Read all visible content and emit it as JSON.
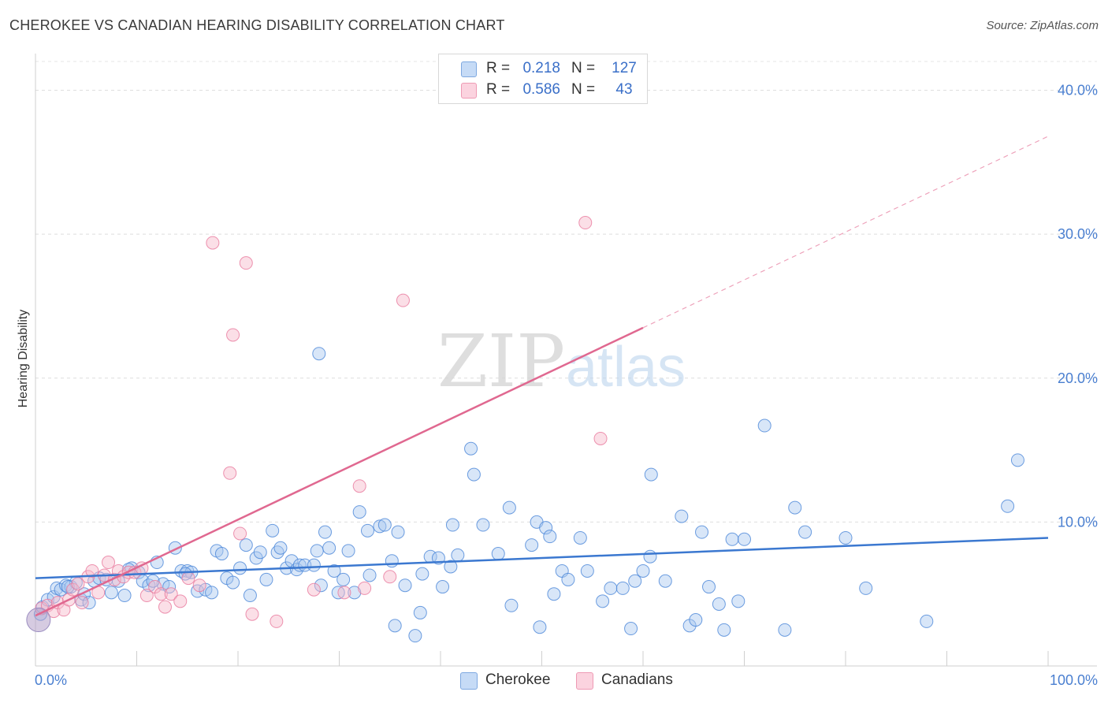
{
  "title": "CHEROKEE VS CANADIAN HEARING DISABILITY CORRELATION CHART",
  "source": "Source: ZipAtlas.com",
  "watermark": {
    "zip": "ZIP",
    "atlas": "atlas"
  },
  "legend": {
    "rows": [
      {
        "r_label": "R =",
        "r_value": "0.218",
        "n_label": "N =",
        "n_value": "127",
        "color": "#a8c8f0"
      },
      {
        "r_label": "R =",
        "r_value": "0.586",
        "n_label": "N =",
        "n_value": "43",
        "color": "#f6b8c9"
      }
    ]
  },
  "bottom_legend": [
    {
      "label": "Cherokee",
      "color": "#a8c8f0"
    },
    {
      "label": "Canadians",
      "color": "#f6b8c9"
    }
  ],
  "chart_data": {
    "type": "scatter",
    "title": "CHEROKEE VS CANADIAN HEARING DISABILITY CORRELATION CHART",
    "xlabel": "",
    "ylabel": "Hearing Disability",
    "xlim": [
      0,
      100
    ],
    "ylim": [
      0,
      42
    ],
    "x_tick_labels": [
      "0.0%",
      "100.0%"
    ],
    "y_ticks": [
      10,
      20,
      30,
      40
    ],
    "y_tick_labels": [
      "10.0%",
      "20.0%",
      "30.0%",
      "40.0%"
    ],
    "grid": true,
    "colors": {
      "cherokee": "#4a86d8",
      "canadians": "#e8789c",
      "cherokee_line": "#3b78d0",
      "canadians_line": "#e06890"
    },
    "series": [
      {
        "name": "Cherokee",
        "color": "#a8c8f0",
        "r": 0.218,
        "n": 127,
        "trend": {
          "x": [
            0,
            100
          ],
          "y": [
            6.1,
            8.9
          ]
        },
        "points": [
          [
            0.5,
            3.6
          ],
          [
            0.7,
            4.1
          ],
          [
            1.2,
            4.6
          ],
          [
            1.8,
            4.8
          ],
          [
            2.1,
            5.4
          ],
          [
            2.5,
            5.3
          ],
          [
            3.0,
            5.6
          ],
          [
            3.5,
            5.5
          ],
          [
            4.0,
            5.8
          ],
          [
            4.5,
            4.6
          ],
          [
            4.8,
            5.0
          ],
          [
            5.3,
            4.4
          ],
          [
            5.8,
            5.9
          ],
          [
            6.3,
            6.1
          ],
          [
            7.0,
            6.0
          ],
          [
            7.5,
            5.1
          ],
          [
            8.2,
            5.9
          ],
          [
            8.8,
            4.9
          ],
          [
            9.5,
            6.8
          ],
          [
            10.2,
            6.5
          ],
          [
            10.6,
            5.9
          ],
          [
            11.2,
            5.6
          ],
          [
            12.0,
            7.2
          ],
          [
            12.6,
            5.7
          ],
          [
            13.2,
            5.5
          ],
          [
            13.8,
            8.2
          ],
          [
            14.4,
            6.6
          ],
          [
            15.0,
            6.6
          ],
          [
            15.4,
            6.5
          ],
          [
            16.0,
            5.2
          ],
          [
            16.8,
            5.3
          ],
          [
            17.4,
            5.1
          ],
          [
            17.9,
            8.0
          ],
          [
            18.4,
            7.8
          ],
          [
            18.9,
            6.1
          ],
          [
            19.5,
            5.8
          ],
          [
            20.2,
            6.8
          ],
          [
            20.8,
            8.4
          ],
          [
            21.2,
            4.9
          ],
          [
            21.8,
            7.5
          ],
          [
            22.2,
            7.9
          ],
          [
            22.8,
            6.0
          ],
          [
            23.4,
            9.4
          ],
          [
            23.9,
            7.9
          ],
          [
            24.2,
            8.2
          ],
          [
            24.8,
            6.8
          ],
          [
            25.3,
            7.3
          ],
          [
            25.8,
            6.7
          ],
          [
            26.1,
            7.0
          ],
          [
            26.6,
            7.0
          ],
          [
            27.5,
            7.0
          ],
          [
            27.8,
            8.0
          ],
          [
            28.2,
            5.6
          ],
          [
            28.6,
            9.3
          ],
          [
            29.0,
            8.2
          ],
          [
            29.5,
            6.6
          ],
          [
            29.9,
            5.1
          ],
          [
            30.4,
            6.0
          ],
          [
            30.9,
            8.0
          ],
          [
            31.5,
            5.1
          ],
          [
            32.0,
            10.7
          ],
          [
            32.8,
            9.4
          ],
          [
            33.0,
            6.3
          ],
          [
            34.0,
            9.7
          ],
          [
            34.5,
            9.8
          ],
          [
            35.2,
            7.3
          ],
          [
            35.5,
            2.8
          ],
          [
            35.8,
            9.3
          ],
          [
            36.5,
            5.6
          ],
          [
            37.5,
            2.1
          ],
          [
            38.0,
            3.7
          ],
          [
            38.2,
            6.4
          ],
          [
            39.0,
            7.6
          ],
          [
            39.8,
            7.5
          ],
          [
            40.2,
            5.5
          ],
          [
            41.0,
            6.9
          ],
          [
            41.2,
            9.8
          ],
          [
            41.7,
            7.7
          ],
          [
            43.0,
            15.1
          ],
          [
            43.3,
            13.3
          ],
          [
            44.2,
            9.8
          ],
          [
            45.7,
            7.8
          ],
          [
            46.8,
            11.0
          ],
          [
            47.0,
            4.2
          ],
          [
            49.0,
            8.4
          ],
          [
            49.5,
            10.0
          ],
          [
            49.8,
            2.7
          ],
          [
            50.4,
            9.6
          ],
          [
            50.8,
            9.0
          ],
          [
            51.2,
            5.0
          ],
          [
            52.0,
            6.6
          ],
          [
            52.6,
            6.0
          ],
          [
            53.8,
            8.9
          ],
          [
            54.5,
            6.6
          ],
          [
            56.0,
            4.5
          ],
          [
            56.8,
            5.4
          ],
          [
            58.0,
            5.4
          ],
          [
            58.8,
            2.6
          ],
          [
            59.2,
            5.9
          ],
          [
            60.0,
            6.6
          ],
          [
            60.7,
            7.6
          ],
          [
            60.8,
            13.3
          ],
          [
            62.2,
            5.9
          ],
          [
            63.8,
            10.4
          ],
          [
            64.6,
            2.8
          ],
          [
            65.2,
            3.2
          ],
          [
            65.8,
            9.3
          ],
          [
            66.5,
            5.5
          ],
          [
            67.5,
            4.3
          ],
          [
            68.0,
            2.5
          ],
          [
            68.8,
            8.8
          ],
          [
            69.4,
            4.5
          ],
          [
            70.0,
            8.8
          ],
          [
            72.0,
            16.7
          ],
          [
            74.0,
            2.5
          ],
          [
            75.0,
            11.0
          ],
          [
            76.0,
            9.3
          ],
          [
            80.0,
            8.9
          ],
          [
            82.0,
            5.4
          ],
          [
            88.0,
            3.1
          ],
          [
            96.0,
            11.1
          ],
          [
            97.0,
            14.3
          ],
          [
            14.8,
            6.4
          ],
          [
            28.0,
            21.7
          ],
          [
            3.2,
            5.5
          ],
          [
            9.2,
            6.7
          ],
          [
            11.6,
            5.9
          ]
        ]
      },
      {
        "name": "Canadians",
        "color": "#f6b8c9",
        "r": 0.586,
        "n": 43,
        "trend": {
          "x": [
            0,
            60
          ],
          "y": [
            3.5,
            23.5
          ]
        },
        "trend_extension": {
          "x": [
            60,
            100
          ],
          "y": [
            23.5,
            36.8
          ]
        },
        "points": [
          [
            0.6,
            4.0
          ],
          [
            1.2,
            4.2
          ],
          [
            1.8,
            3.8
          ],
          [
            2.2,
            4.4
          ],
          [
            2.8,
            3.9
          ],
          [
            3.3,
            4.6
          ],
          [
            3.7,
            5.3
          ],
          [
            4.2,
            5.7
          ],
          [
            4.6,
            4.4
          ],
          [
            5.2,
            6.2
          ],
          [
            5.6,
            6.6
          ],
          [
            6.2,
            5.1
          ],
          [
            6.8,
            6.3
          ],
          [
            7.2,
            7.2
          ],
          [
            7.8,
            6.0
          ],
          [
            8.2,
            6.6
          ],
          [
            8.7,
            6.2
          ],
          [
            9.2,
            6.5
          ],
          [
            9.8,
            6.5
          ],
          [
            10.5,
            6.8
          ],
          [
            11.0,
            4.9
          ],
          [
            11.8,
            5.5
          ],
          [
            12.4,
            5.0
          ],
          [
            12.8,
            4.1
          ],
          [
            13.4,
            5.0
          ],
          [
            14.3,
            4.5
          ],
          [
            15.1,
            6.1
          ],
          [
            16.2,
            5.6
          ],
          [
            17.5,
            29.4
          ],
          [
            19.2,
            13.4
          ],
          [
            19.5,
            23.0
          ],
          [
            20.2,
            9.2
          ],
          [
            20.8,
            28.0
          ],
          [
            21.4,
            3.6
          ],
          [
            23.8,
            3.1
          ],
          [
            27.5,
            5.3
          ],
          [
            30.5,
            5.1
          ],
          [
            32.0,
            12.5
          ],
          [
            32.5,
            5.4
          ],
          [
            35.0,
            6.2
          ],
          [
            36.3,
            25.4
          ],
          [
            54.3,
            30.8
          ],
          [
            55.8,
            15.8
          ]
        ]
      }
    ]
  }
}
